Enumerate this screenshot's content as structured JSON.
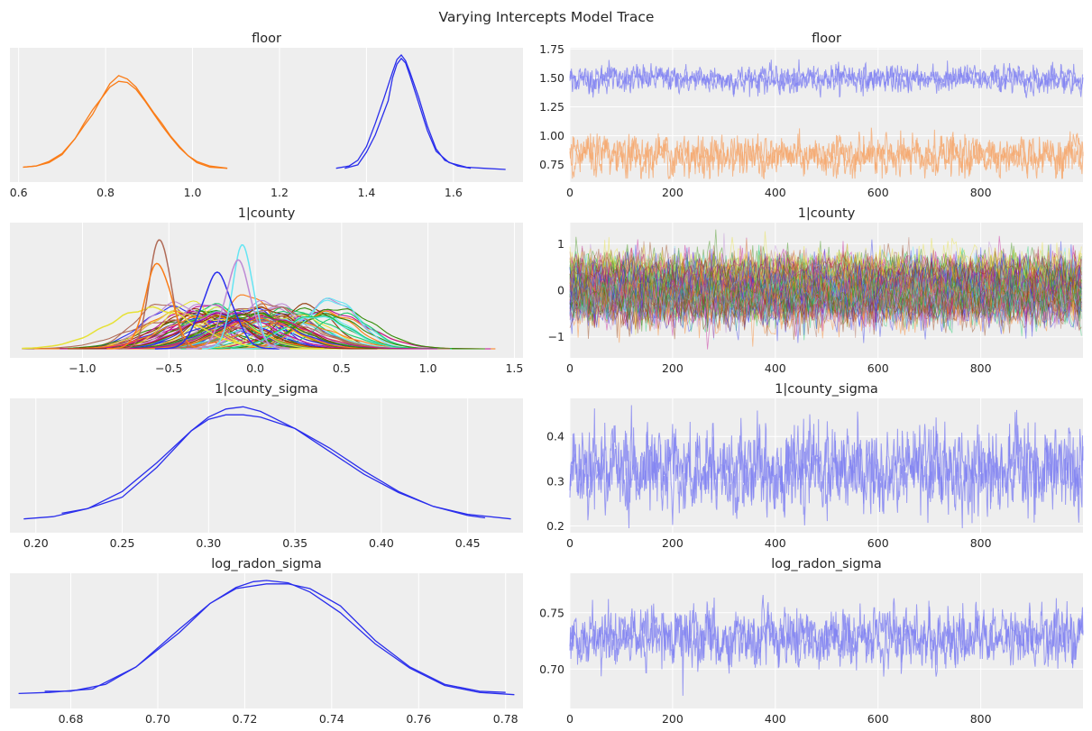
{
  "figure": {
    "title": "Varying Intercepts Model Trace"
  },
  "palette": [
    "#2a2eec",
    "#fa7c17",
    "#328c06",
    "#c10c90",
    "#933708",
    "#65e5f3",
    "#e6e135",
    "#1ccd6a",
    "#bd8ad5",
    "#b16b57"
  ],
  "chart_data": [
    {
      "type": "line",
      "id": "floor_density",
      "title": "floor",
      "xlim": [
        0.58,
        1.76
      ],
      "xticks": [
        0.6,
        0.8,
        1.0,
        1.2,
        1.4,
        1.6
      ],
      "xtick_labels": [
        "0.6",
        "0.8",
        "1.0",
        "1.2",
        "1.4",
        "1.6"
      ],
      "ylabel": "",
      "yticks": "none",
      "grid": true,
      "series": [
        {
          "color": "#fa7c17",
          "x": [
            0.61,
            0.64,
            0.67,
            0.7,
            0.73,
            0.75,
            0.77,
            0.79,
            0.81,
            0.83,
            0.85,
            0.87,
            0.89,
            0.91,
            0.93,
            0.95,
            0.97,
            0.99,
            1.01,
            1.04,
            1.08
          ],
          "y": [
            0.02,
            0.03,
            0.07,
            0.14,
            0.27,
            0.4,
            0.52,
            0.62,
            0.72,
            0.77,
            0.76,
            0.7,
            0.6,
            0.49,
            0.38,
            0.28,
            0.19,
            0.12,
            0.07,
            0.03,
            0.01
          ]
        },
        {
          "color": "#fa7c17",
          "x": [
            0.61,
            0.64,
            0.67,
            0.7,
            0.73,
            0.75,
            0.77,
            0.79,
            0.81,
            0.83,
            0.85,
            0.87,
            0.89,
            0.91,
            0.93,
            0.95,
            0.97,
            0.99,
            1.01,
            1.04,
            1.08
          ],
          "y": [
            0.02,
            0.03,
            0.06,
            0.13,
            0.27,
            0.38,
            0.48,
            0.62,
            0.75,
            0.82,
            0.79,
            0.72,
            0.61,
            0.5,
            0.4,
            0.29,
            0.2,
            0.12,
            0.06,
            0.02,
            0.01
          ]
        },
        {
          "color": "#2a2eec",
          "x": [
            1.33,
            1.36,
            1.38,
            1.4,
            1.42,
            1.44,
            1.46,
            1.47,
            1.48,
            1.49,
            1.5,
            1.52,
            1.54,
            1.56,
            1.58,
            1.61,
            1.64
          ],
          "y": [
            0.01,
            0.03,
            0.08,
            0.2,
            0.4,
            0.62,
            0.85,
            0.96,
            1.0,
            0.95,
            0.85,
            0.63,
            0.38,
            0.18,
            0.08,
            0.03,
            0.01
          ]
        },
        {
          "color": "#2a2eec",
          "x": [
            1.35,
            1.38,
            1.4,
            1.42,
            1.44,
            1.45,
            1.46,
            1.47,
            1.48,
            1.49,
            1.5,
            1.52,
            1.54,
            1.56,
            1.59,
            1.63,
            1.67,
            1.72
          ],
          "y": [
            0.01,
            0.04,
            0.15,
            0.3,
            0.5,
            0.6,
            0.8,
            0.92,
            0.97,
            0.93,
            0.82,
            0.58,
            0.34,
            0.16,
            0.06,
            0.02,
            0.01,
            0.0
          ]
        }
      ]
    },
    {
      "type": "line",
      "id": "floor_trace",
      "title": "floor",
      "xlim": [
        0,
        999
      ],
      "xticks": [
        0,
        200,
        400,
        600,
        800
      ],
      "ylim": [
        0.6,
        1.76
      ],
      "yticks": [
        0.75,
        1.0,
        1.25,
        1.5,
        1.75
      ],
      "ytick_labels": [
        "0.75",
        "1.00",
        "1.25",
        "1.50",
        "1.75"
      ],
      "grid": true,
      "draws": 1000,
      "series": [
        {
          "color": "#2a2eec",
          "mean": 1.49,
          "sd": 0.055,
          "max": 1.72,
          "min": 1.33
        },
        {
          "color": "#fa7c17",
          "mean": 0.83,
          "sd": 0.08,
          "max": 1.07,
          "min": 0.63
        }
      ]
    },
    {
      "type": "line",
      "id": "county_density",
      "title": "1|county",
      "xlim": [
        -1.42,
        1.55
      ],
      "xticks": [
        -1.0,
        -0.5,
        0.0,
        0.5,
        1.0,
        1.5
      ],
      "xtick_labels": [
        "−1.0",
        "−0.5",
        "0.0",
        "0.5",
        "1.0",
        "1.5"
      ],
      "yticks": "none",
      "grid": true,
      "series_count": 85,
      "highlight_series": [
        {
          "color": "#e6e135",
          "mean": -0.6,
          "sd": 0.25,
          "peak": 0.34
        },
        {
          "color": "#b16b57",
          "mean": -0.55,
          "sd": 0.06,
          "peak": 0.94
        },
        {
          "color": "#fa7c17",
          "mean": -0.56,
          "sd": 0.075,
          "peak": 0.72
        },
        {
          "color": "#65e5f3",
          "mean": -0.07,
          "sd": 0.06,
          "peak": 0.86
        },
        {
          "color": "#2a2eec",
          "mean": -0.22,
          "sd": 0.09,
          "peak": 0.62
        },
        {
          "color": "#bd8ad5",
          "mean": -0.1,
          "sd": 0.075,
          "peak": 0.72
        }
      ]
    },
    {
      "type": "line",
      "id": "county_trace",
      "title": "1|county",
      "xlim": [
        0,
        999
      ],
      "xticks": [
        0,
        200,
        400,
        600,
        800
      ],
      "ylim": [
        -1.45,
        1.45
      ],
      "yticks": [
        -1,
        0,
        1
      ],
      "ytick_labels": [
        "−1",
        "0",
        "1"
      ],
      "grid": true,
      "series_count": 85,
      "draws": 1000
    },
    {
      "type": "line",
      "id": "sigma_density",
      "title": "1|county_sigma",
      "xlim": [
        0.185,
        0.482
      ],
      "xticks": [
        0.2,
        0.25,
        0.3,
        0.35,
        0.4,
        0.45
      ],
      "xtick_labels": [
        "0.20",
        "0.25",
        "0.30",
        "0.35",
        "0.40",
        "0.45"
      ],
      "yticks": "none",
      "grid": true,
      "series": [
        {
          "color": "#2a2eec",
          "x": [
            0.193,
            0.21,
            0.23,
            0.25,
            0.27,
            0.29,
            0.3,
            0.31,
            0.32,
            0.33,
            0.35,
            0.37,
            0.39,
            0.41,
            0.43,
            0.45,
            0.475
          ],
          "y": [
            0.01,
            0.03,
            0.1,
            0.25,
            0.5,
            0.78,
            0.9,
            0.97,
            0.99,
            0.95,
            0.8,
            0.6,
            0.4,
            0.24,
            0.12,
            0.05,
            0.01
          ]
        },
        {
          "color": "#2a2eec",
          "x": [
            0.215,
            0.23,
            0.25,
            0.27,
            0.29,
            0.3,
            0.31,
            0.32,
            0.33,
            0.35,
            0.37,
            0.39,
            0.41,
            0.43,
            0.45,
            0.46
          ],
          "y": [
            0.06,
            0.1,
            0.2,
            0.46,
            0.78,
            0.88,
            0.92,
            0.92,
            0.9,
            0.8,
            0.63,
            0.43,
            0.25,
            0.12,
            0.04,
            0.02
          ]
        }
      ]
    },
    {
      "type": "line",
      "id": "sigma_trace",
      "title": "1|county_sigma",
      "xlim": [
        0,
        999
      ],
      "xticks": [
        0,
        200,
        400,
        600,
        800
      ],
      "ylim": [
        0.185,
        0.485
      ],
      "yticks": [
        0.2,
        0.3,
        0.4
      ],
      "ytick_labels": [
        "0.2",
        "0.3",
        "0.4"
      ],
      "grid": true,
      "draws": 1000,
      "series": [
        {
          "color": "#2a2eec",
          "mean": 0.325,
          "sd": 0.045,
          "max": 0.47,
          "min": 0.195
        }
      ]
    },
    {
      "type": "line",
      "id": "radon_density",
      "title": "log_radon_sigma",
      "xlim": [
        0.666,
        0.784
      ],
      "xticks": [
        0.68,
        0.7,
        0.72,
        0.74,
        0.76,
        0.78
      ],
      "xtick_labels": [
        "0.68",
        "0.70",
        "0.72",
        "0.74",
        "0.76",
        "0.78"
      ],
      "yticks": "none",
      "grid": true,
      "series": [
        {
          "color": "#2a2eec",
          "x": [
            0.668,
            0.675,
            0.685,
            0.695,
            0.705,
            0.712,
            0.718,
            0.722,
            0.725,
            0.73,
            0.735,
            0.742,
            0.75,
            0.758,
            0.766,
            0.774,
            0.782
          ],
          "y": [
            0.02,
            0.03,
            0.06,
            0.25,
            0.55,
            0.8,
            0.94,
            0.99,
            1.0,
            0.98,
            0.9,
            0.72,
            0.45,
            0.24,
            0.09,
            0.03,
            0.01
          ]
        },
        {
          "color": "#2a2eec",
          "x": [
            0.674,
            0.68,
            0.688,
            0.695,
            0.705,
            0.712,
            0.718,
            0.725,
            0.73,
            0.735,
            0.742,
            0.75,
            0.758,
            0.766,
            0.774,
            0.78
          ],
          "y": [
            0.04,
            0.04,
            0.1,
            0.25,
            0.58,
            0.8,
            0.93,
            0.97,
            0.97,
            0.93,
            0.78,
            0.48,
            0.25,
            0.1,
            0.04,
            0.03
          ]
        }
      ]
    },
    {
      "type": "line",
      "id": "radon_trace",
      "title": "log_radon_sigma",
      "xlim": [
        0,
        999
      ],
      "xticks": [
        0,
        200,
        400,
        600,
        800
      ],
      "ylim": [
        0.665,
        0.785
      ],
      "yticks": [
        0.7,
        0.75
      ],
      "ytick_labels": [
        "0.70",
        "0.75"
      ],
      "grid": true,
      "draws": 1000,
      "series": [
        {
          "color": "#2a2eec",
          "mean": 0.728,
          "sd": 0.012,
          "max": 0.782,
          "min": 0.672
        }
      ]
    }
  ]
}
